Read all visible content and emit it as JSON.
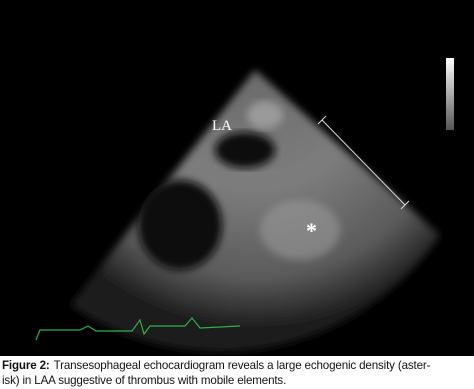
{
  "figure": {
    "labels": [
      "LA",
      "*"
    ]
  },
  "caption": {
    "label": "Figure 2:",
    "lines": [
      "Transesophageal echocardiogram reveals a large echogenic density (aster-",
      "isk) in LAA suggestive of thrombus with mobile elements."
    ]
  }
}
